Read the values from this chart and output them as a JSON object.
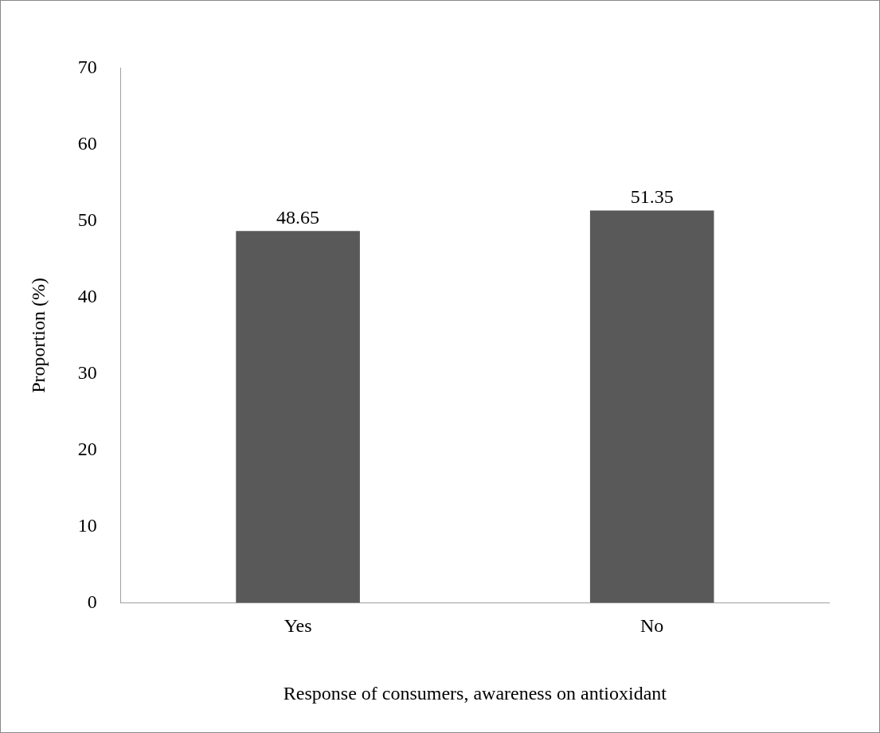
{
  "chart_data": {
    "type": "bar",
    "xlabel": "Response of consumers, awareness on antioxidant",
    "ylabel": "Proportion (%)",
    "categories": [
      "Yes",
      "No"
    ],
    "values": [
      48.65,
      51.35
    ],
    "color": "#595959",
    "ylim": [
      0,
      70
    ],
    "yticks": [
      0,
      10,
      20,
      30,
      40,
      50,
      60,
      70
    ],
    "grid": false,
    "legend": false,
    "data_labels": true
  }
}
